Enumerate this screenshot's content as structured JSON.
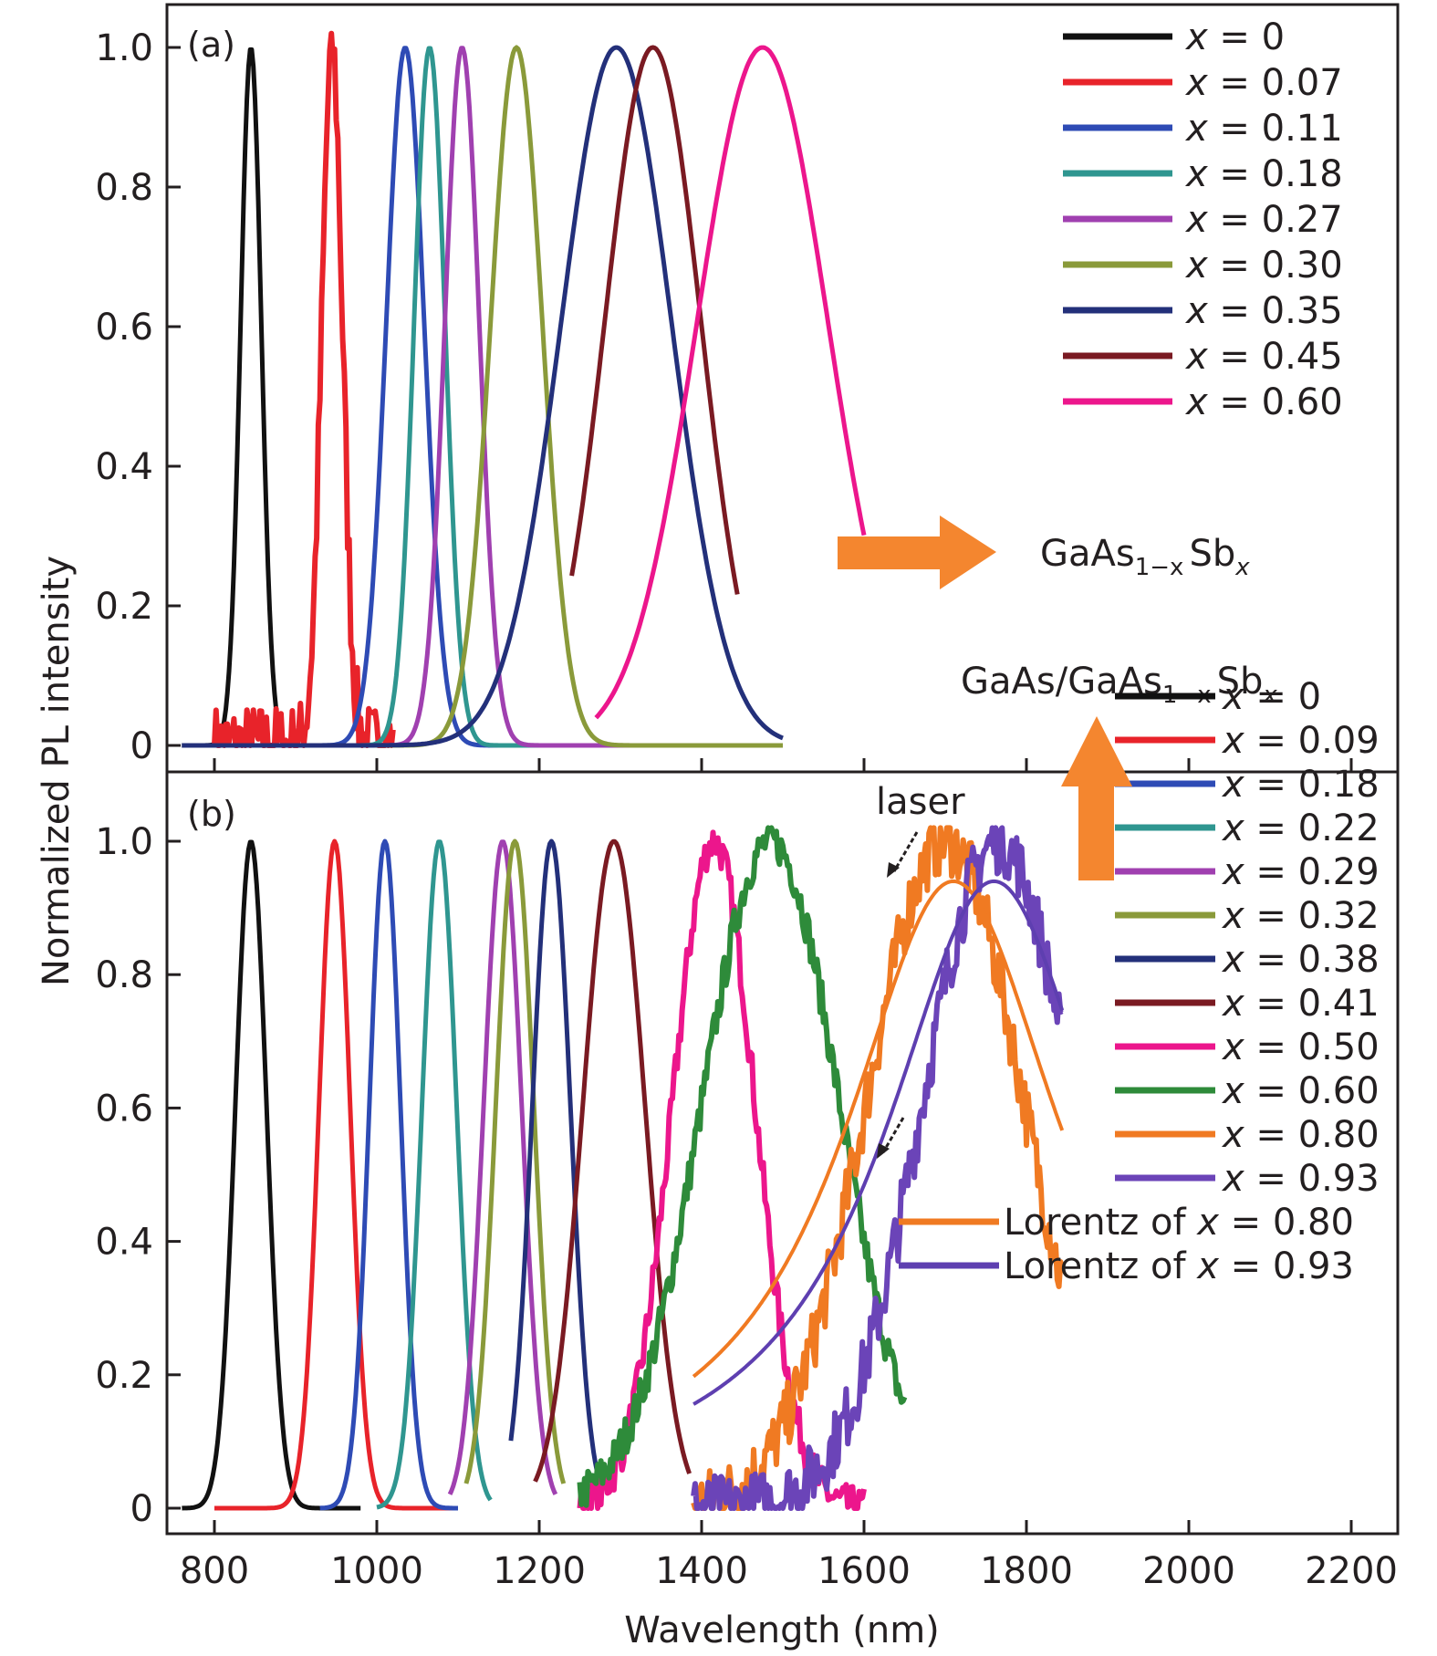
{
  "chart_data": [
    {
      "panel": "(a)",
      "type": "line",
      "xlabel": "Wavelength (nm)",
      "ylabel": "Normalized PL intensity",
      "xlim": [
        740,
        2250
      ],
      "ylim": [
        0,
        1.1
      ],
      "xticks": [
        800,
        1000,
        1200,
        1400,
        1600,
        1800,
        2000,
        2200
      ],
      "yticks": [
        0,
        0.2,
        0.4,
        0.6,
        0.8,
        1.0
      ],
      "ytick_labels": [
        "0",
        "0.2",
        "0.4",
        "0.6",
        "0.8",
        "1.0"
      ],
      "legend_position": "top-right",
      "annotation": {
        "text_main": "GaAs",
        "sub1": "1−x",
        "text_mid": "Sb",
        "sub2": "x"
      },
      "series": [
        {
          "name": "x = 0",
          "x_value": "0",
          "color": "#111111",
          "peak_nm": 845,
          "fwhm_nm": 30,
          "range": [
            760,
            900
          ],
          "noise": 0.0
        },
        {
          "name": "x = 0.07",
          "x_value": "0.07",
          "color": "#e8232a",
          "peak_nm": 945,
          "fwhm_nm": 30,
          "range": [
            800,
            1020
          ],
          "noise": 0.06
        },
        {
          "name": "x = 0.11",
          "x_value": "0.11",
          "color": "#2e4bb5",
          "peak_nm": 1035,
          "fwhm_nm": 55,
          "range": [
            760,
            1280
          ],
          "noise": 0.0
        },
        {
          "name": "x = 0.18",
          "x_value": "0.18",
          "color": "#2f9690",
          "peak_nm": 1065,
          "fwhm_nm": 45,
          "range": [
            760,
            1500
          ],
          "noise": 0.0
        },
        {
          "name": "x = 0.27",
          "x_value": "0.27",
          "color": "#a040b0",
          "peak_nm": 1105,
          "fwhm_nm": 50,
          "range": [
            760,
            1400
          ],
          "noise": 0.0
        },
        {
          "name": "x = 0.30",
          "x_value": "0.30",
          "color": "#8a9a3a",
          "peak_nm": 1172,
          "fwhm_nm": 75,
          "range": [
            760,
            1500
          ],
          "noise": 0.0
        },
        {
          "name": "x = 0.35",
          "x_value": "0.35",
          "color": "#23307a",
          "peak_nm": 1295,
          "fwhm_nm": 160,
          "range": [
            760,
            1500
          ],
          "noise": 0.0
        },
        {
          "name": "x = 0.45",
          "x_value": "0.45",
          "color": "#7a1a22",
          "peak_nm": 1340,
          "fwhm_nm": 140,
          "range": [
            1240,
            1445
          ],
          "noise": 0.0
        },
        {
          "name": "x = 0.60",
          "x_value": "0.60",
          "color": "#ec168c",
          "peak_nm": 1475,
          "fwhm_nm": 190,
          "range": [
            1270,
            1600
          ],
          "noise": 0.0
        }
      ]
    },
    {
      "panel": "(b)",
      "type": "line",
      "xlabel": "Wavelength (nm)",
      "ylabel": "Normalized PL intensity",
      "xlim": [
        740,
        2250
      ],
      "ylim": [
        0,
        1.1
      ],
      "xticks": [
        800,
        1000,
        1200,
        1400,
        1600,
        1800,
        2000,
        2200
      ],
      "xtick_labels": [
        "800",
        "1000",
        "1200",
        "1400",
        "1600",
        "1800",
        "2000",
        "2200"
      ],
      "yticks": [
        0,
        0.2,
        0.4,
        0.6,
        0.8,
        1.0
      ],
      "ytick_labels": [
        "0",
        "0.2",
        "0.4",
        "0.6",
        "0.8",
        "1.0"
      ],
      "legend_position": "right",
      "annotation": {
        "text_main": "GaAs/GaAs",
        "sub1": "1−x",
        "text_mid": "Sb",
        "sub2": "x"
      },
      "laser_label": "laser",
      "series": [
        {
          "name": "x = 0",
          "x_value": "0",
          "color": "#111111",
          "peak_nm": 845,
          "fwhm_nm": 45,
          "range": [
            760,
            980
          ],
          "noise": 0.0
        },
        {
          "name": "x = 0.09",
          "x_value": "0.09",
          "color": "#e8232a",
          "peak_nm": 948,
          "fwhm_nm": 45,
          "range": [
            800,
            1100
          ],
          "noise": 0.0
        },
        {
          "name": "x = 0.18",
          "x_value": "0.18",
          "color": "#2e4bb5",
          "peak_nm": 1010,
          "fwhm_nm": 45,
          "range": [
            930,
            1100
          ],
          "noise": 0.0
        },
        {
          "name": "x = 0.22",
          "x_value": "0.22",
          "color": "#2f9690",
          "peak_nm": 1077,
          "fwhm_nm": 50,
          "range": [
            1000,
            1140
          ],
          "noise": 0.0
        },
        {
          "name": "x = 0.29",
          "x_value": "0.29",
          "color": "#a040b0",
          "peak_nm": 1155,
          "fwhm_nm": 55,
          "range": [
            1090,
            1220
          ],
          "noise": 0.0
        },
        {
          "name": "x = 0.32",
          "x_value": "0.32",
          "color": "#8a9a3a",
          "peak_nm": 1170,
          "fwhm_nm": 55,
          "range": [
            1110,
            1230
          ],
          "noise": 0.0
        },
        {
          "name": "x = 0.38",
          "x_value": "0.38",
          "color": "#23307a",
          "peak_nm": 1215,
          "fwhm_nm": 55,
          "range": [
            1165,
            1275
          ],
          "noise": 0.0
        },
        {
          "name": "x = 0.41",
          "x_value": "0.41",
          "color": "#7a1a22",
          "peak_nm": 1292,
          "fwhm_nm": 90,
          "range": [
            1195,
            1385
          ],
          "noise": 0.0
        },
        {
          "name": "x = 0.50",
          "x_value": "0.50",
          "color": "#ec168c",
          "peak_nm": 1415,
          "fwhm_nm": 120,
          "range": [
            1250,
            1600
          ],
          "noise": 0.03
        },
        {
          "name": "x = 0.60",
          "x_value": "0.60",
          "color": "#2e8b3a",
          "peak_nm": 1485,
          "fwhm_nm": 200,
          "range": [
            1250,
            1650
          ],
          "noise": 0.03
        },
        {
          "name": "x = 0.80",
          "x_value": "0.80",
          "color": "#f07a22",
          "peak_nm": 1700,
          "fwhm_nm": 230,
          "range": [
            1390,
            1845
          ],
          "noise": 0.05
        },
        {
          "name": "x = 0.93",
          "x_value": "0.93",
          "color": "#6b44b8",
          "peak_nm": 1765,
          "fwhm_nm": 220,
          "range": [
            1390,
            1845
          ],
          "noise": 0.05
        },
        {
          "name": "Lorentz of x = 0.80",
          "x_value": "0.80",
          "lorentz": true,
          "color": "#f07a22",
          "peak_nm": 1710,
          "fwhm_nm": 330,
          "range": [
            1390,
            1845
          ],
          "noise": 0.0
        },
        {
          "name": "Lorentz of x = 0.93",
          "x_value": "0.93",
          "lorentz": true,
          "color": "#5e3fb0",
          "peak_nm": 1760,
          "fwhm_nm": 330,
          "range": [
            1390,
            1845
          ],
          "noise": 0.0
        }
      ]
    }
  ],
  "colors": {
    "arrow": "#f4862f",
    "axis": "#231f20"
  }
}
